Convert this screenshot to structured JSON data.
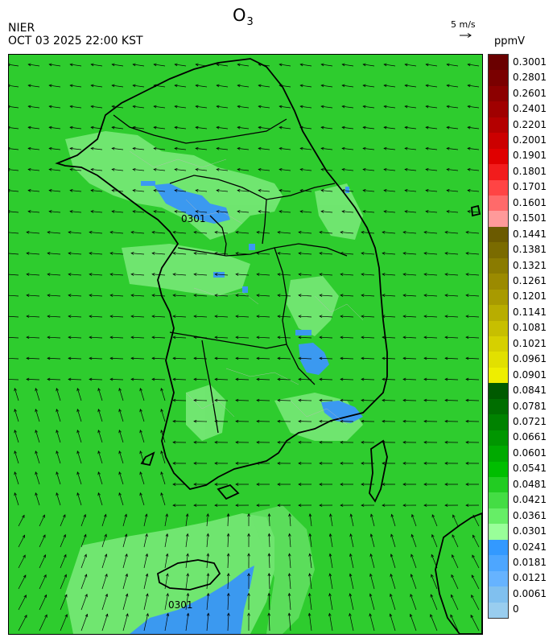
{
  "header": {
    "title_main": "O",
    "title_sub": "3",
    "agency": "NIER",
    "timestamp": "OCT 03 2025 22:00 KST"
  },
  "wind_reference": {
    "label": "5 m/s",
    "speed": 5
  },
  "colorbar": {
    "unit": "ppmV",
    "labels": [
      "0.3001",
      "0.2801",
      "0.2601",
      "0.2401",
      "0.2201",
      "0.2001",
      "0.1901",
      "0.1801",
      "0.1701",
      "0.1601",
      "0.1501",
      "0.1441",
      "0.1381",
      "0.1321",
      "0.1261",
      "0.1201",
      "0.1141",
      "0.1081",
      "0.1021",
      "0.0961",
      "0.0901",
      "0.0841",
      "0.0781",
      "0.0721",
      "0.0661",
      "0.0601",
      "0.0541",
      "0.0481",
      "0.0421",
      "0.0361",
      "0.0301",
      "0.0241",
      "0.0181",
      "0.0121",
      "0.0061",
      "0"
    ],
    "colors": [
      "#6a0000",
      "#7a0000",
      "#8c0000",
      "#a00000",
      "#b40000",
      "#cc0000",
      "#e00000",
      "#f21c1c",
      "#ff4444",
      "#ff6a6a",
      "#ff9a9a",
      "#6b5a00",
      "#7a6b00",
      "#8a7b00",
      "#9b8a00",
      "#a89a00",
      "#b8ad00",
      "#c7bf00",
      "#d6d000",
      "#e2e000",
      "#eeee00",
      "#005a00",
      "#006e00",
      "#008200",
      "#009600",
      "#00aa00",
      "#00be00",
      "#22cc22",
      "#44dd44",
      "#66ee66",
      "#99ff99",
      "#3399ff",
      "#4da6ff",
      "#66b3ff",
      "#80c0ef",
      "#99cdef"
    ]
  },
  "map": {
    "contour_labels": [
      "0301",
      "0301"
    ],
    "background_color": "#2ecc2e"
  }
}
